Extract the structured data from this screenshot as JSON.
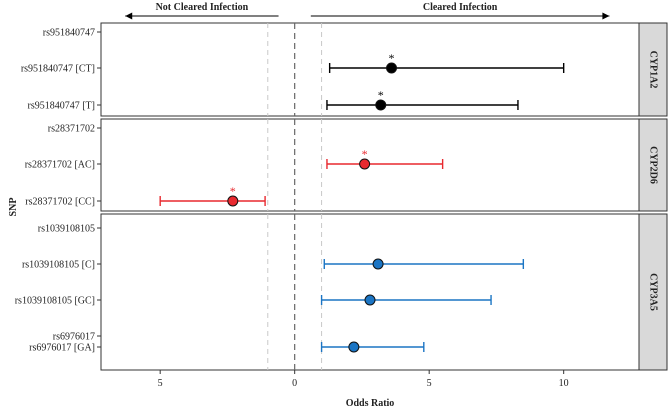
{
  "chart_data": {
    "type": "scatter",
    "subtype": "forest-plot",
    "xlabel": "Odds Ratio",
    "ylabel": "SNP",
    "xlim": [
      -7.2,
      12.8
    ],
    "x_ticks": [
      {
        "value": -5,
        "label": "5"
      },
      {
        "value": 0,
        "label": "0"
      },
      {
        "value": 5,
        "label": "5"
      },
      {
        "value": 10,
        "label": "10"
      }
    ],
    "reference_lines": {
      "zero": 0,
      "light": [
        -1,
        1
      ]
    },
    "top_arrows": [
      {
        "label": "Not Cleared Infection",
        "direction": "left",
        "from": -0.6,
        "to": -6.3
      },
      {
        "label": "Cleared Infection",
        "direction": "right",
        "from": 0.6,
        "to": 11.7
      }
    ],
    "panels": [
      {
        "name": "CYP1A2",
        "color": "#000000",
        "rows": [
          {
            "label": "rs951840747",
            "or": null
          },
          {
            "label": "rs951840747 [CT]",
            "or": 3.6,
            "lo": 1.3,
            "hi": 10.0,
            "sig": true
          },
          {
            "label": "rs951840747 [T]",
            "or": 3.2,
            "lo": 1.2,
            "hi": 8.3,
            "sig": true
          }
        ]
      },
      {
        "name": "CYP2D6",
        "color": "#e8292f",
        "rows": [
          {
            "label": "rs28371702",
            "or": null
          },
          {
            "label": "rs28371702 [AC]",
            "or": 2.6,
            "lo": 1.2,
            "hi": 5.5,
            "sig": true
          },
          {
            "label": "rs28371702 [CC]",
            "or": -2.3,
            "lo": -5.0,
            "hi": -1.1,
            "sig": true
          }
        ]
      },
      {
        "name": "CYP3A5",
        "color": "#1b75c4",
        "rows": [
          {
            "label": "rs1039108105",
            "or": null
          },
          {
            "label": "rs1039108105 [C]",
            "or": 3.1,
            "lo": 1.1,
            "hi": 8.5,
            "sig": false
          },
          {
            "label": "rs1039108105 [GC]",
            "or": 2.8,
            "lo": 1.0,
            "hi": 7.3,
            "sig": false
          },
          {
            "label": "rs6976017",
            "or": null
          },
          {
            "label": "rs6976017 [GA]",
            "or": 2.2,
            "lo": 1.0,
            "hi": 4.8,
            "sig": false
          }
        ]
      }
    ],
    "significance_marker": "*"
  }
}
